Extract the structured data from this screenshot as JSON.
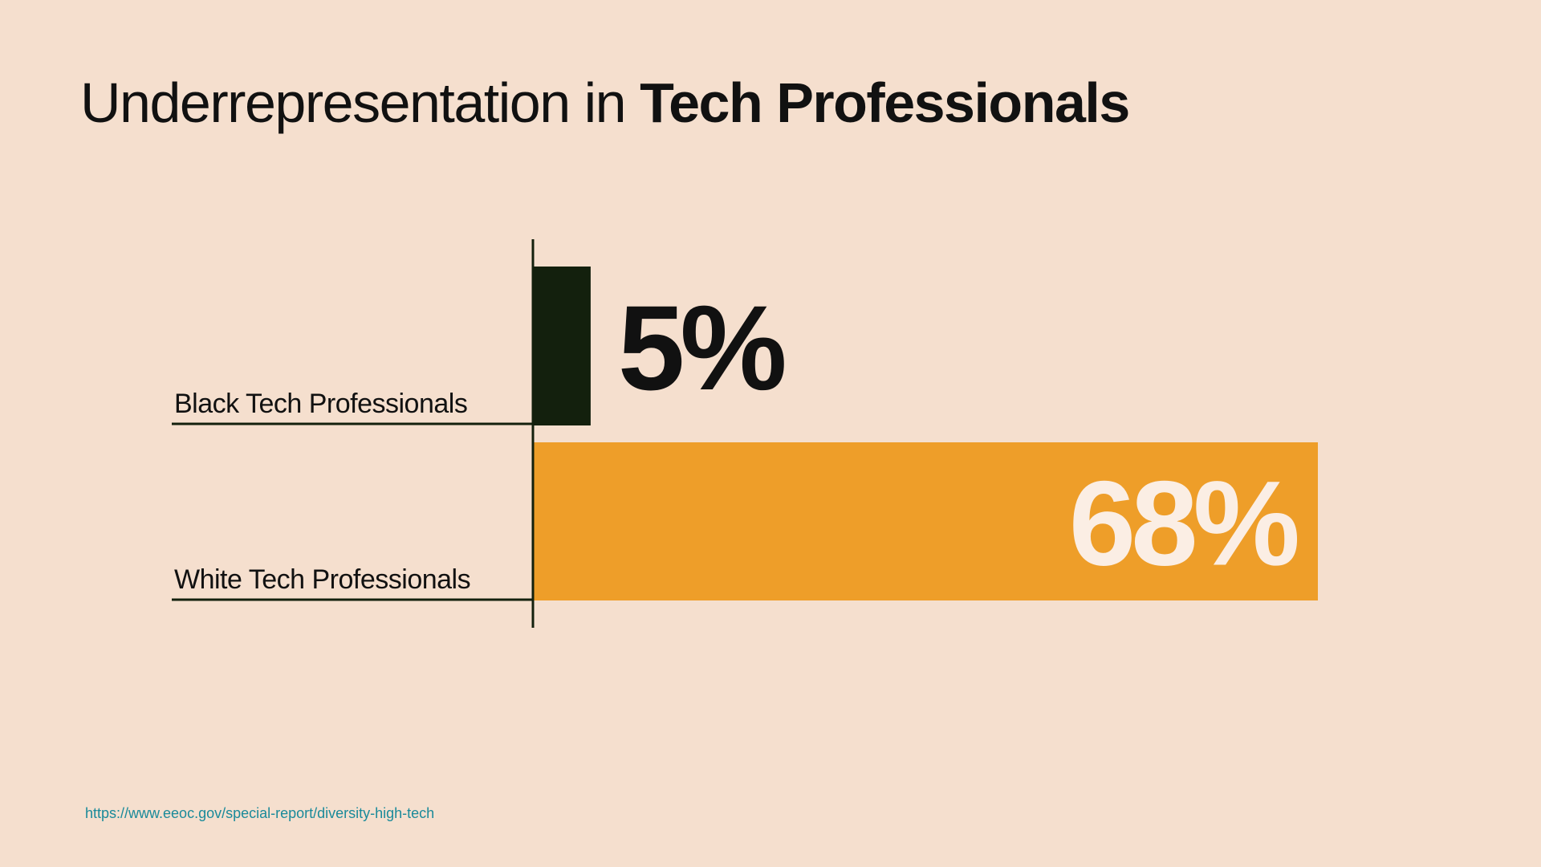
{
  "title": {
    "light": "Underrepresentation in ",
    "bold": "Tech Professionals"
  },
  "source_url": "https://www.eeoc.gov/special-report/diversity-high-tech",
  "colors": {
    "background": "#f5dfce",
    "axis": "#13200d",
    "text": "#111111",
    "link": "#1a8a9a"
  },
  "chart_data": {
    "type": "bar",
    "orientation": "horizontal",
    "title": "Underrepresentation in Tech Professionals",
    "categories": [
      "Black Tech Professionals",
      "White Tech Professionals"
    ],
    "values": [
      5,
      68
    ],
    "data_labels": [
      "5%",
      "68%"
    ],
    "bar_colors": [
      "#13200d",
      "#ee9e29"
    ],
    "label_colors": [
      "#111111",
      "#fbeee4"
    ],
    "unit": "%",
    "xlim": [
      0,
      68
    ]
  }
}
